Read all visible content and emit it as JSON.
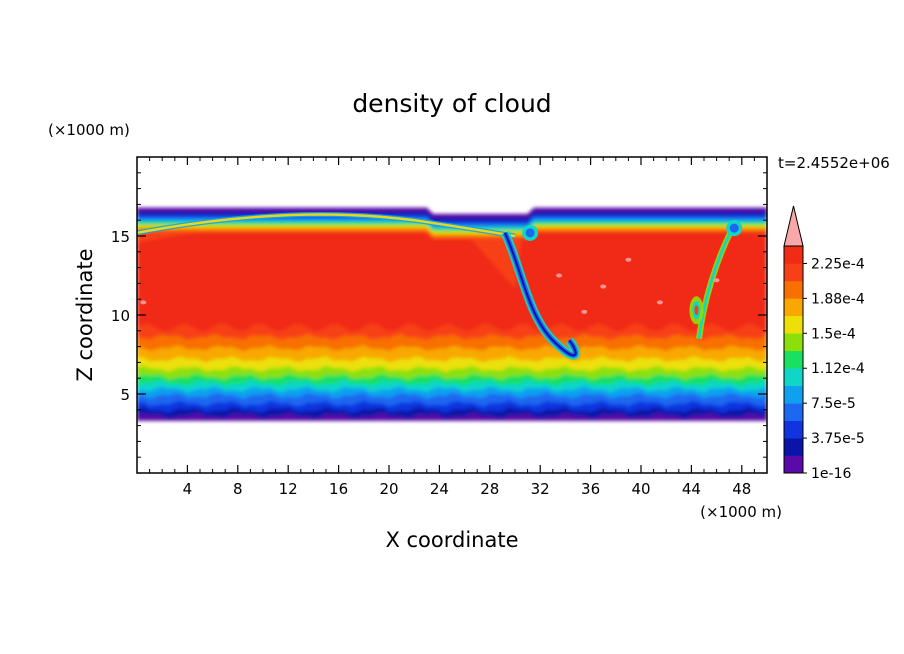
{
  "chart_data": {
    "type": "heatmap",
    "title": "density of cloud",
    "xlabel": "X coordinate",
    "ylabel": "Z coordinate",
    "x_unit": "(×1000 m)",
    "y_unit": "(×1000 m)",
    "time_label": "t=2.4552e+06",
    "xlim": [
      0,
      50
    ],
    "ylim": [
      0,
      20
    ],
    "x_ticks": [
      4,
      8,
      12,
      16,
      20,
      24,
      28,
      32,
      36,
      40,
      44,
      48
    ],
    "x_tick_labels": [
      "4",
      "8",
      "12",
      "16",
      "20",
      "24",
      "28",
      "32",
      "36",
      "40",
      "44",
      "48"
    ],
    "y_ticks": [
      5,
      10,
      15
    ],
    "y_tick_labels": [
      "5",
      "10",
      "15"
    ],
    "colorbar": {
      "labels": [
        "2.25e-4",
        "1.88e-4",
        "1.5e-4",
        "1.12e-4",
        "7.5e-5",
        "3.75e-5",
        "1e-16"
      ],
      "levels": [
        1e-16,
        1.87e-05,
        3.75e-05,
        5.63e-05,
        7.5e-05,
        9.37e-05,
        0.0001125,
        0.0001312,
        0.00015,
        0.0001687,
        0.0001875,
        0.0002062,
        0.000225,
        0.0002437
      ],
      "colors": [
        "#5a0aa8",
        "#0a14a8",
        "#1034e0",
        "#1c68f0",
        "#10a0f0",
        "#10d6c8",
        "#18e060",
        "#8ce00a",
        "#ece008",
        "#f8a800",
        "#f87000",
        "#f84018",
        "#f02c14",
        "#f8a8a8"
      ],
      "extend_max_color": "#f8a8a8"
    },
    "cloud_layer": {
      "base_z": 3.3,
      "top_z_west": 16.8,
      "top_z_east": 16.8,
      "peak_density_z_range": [
        7.5,
        15
      ],
      "peak_density": 0.000235
    }
  }
}
